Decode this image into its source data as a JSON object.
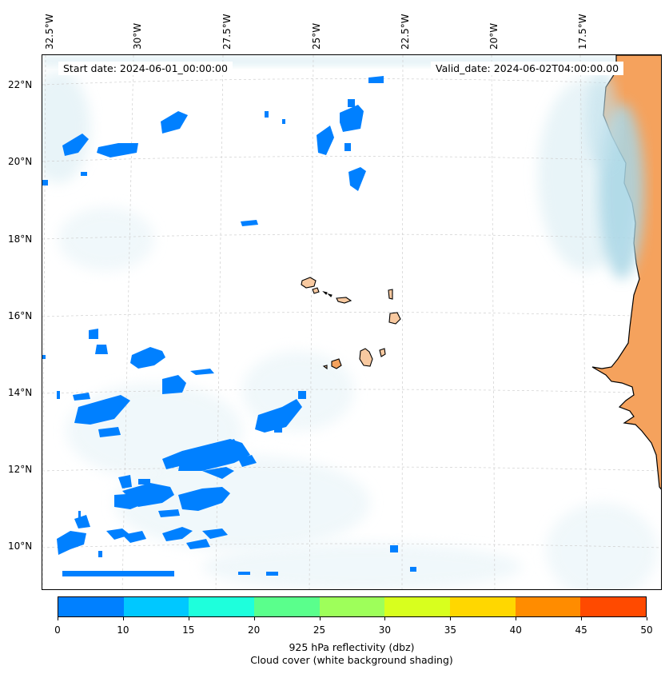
{
  "header": {
    "start_date": "Start date: 2024-06-01_00:00:00",
    "valid_date": "Valid_date: 2024-06-02T04:00:00.00"
  },
  "axes": {
    "lon_labels": [
      "32.5°W",
      "30°W",
      "27.5°W",
      "25°W",
      "22.5°W",
      "20°W",
      "17.5°W"
    ],
    "lat_labels": [
      "22°N",
      "20°N",
      "18°N",
      "16°N",
      "14°N",
      "12°N",
      "10°N"
    ]
  },
  "colorbar": {
    "ticks": [
      "0",
      "10",
      "15",
      "20",
      "25",
      "30",
      "35",
      "40",
      "45",
      "50"
    ],
    "colors": [
      "#0080ff",
      "#00c8ff",
      "#1effdc",
      "#5aff8c",
      "#9eff5a",
      "#d8ff1e",
      "#ffd700",
      "#ff8c00",
      "#ff4a00"
    ],
    "label_line1": "925 hPa reflectivity (dbz)",
    "label_line2": "Cloud cover (white background shading)"
  },
  "map_colors": {
    "land": "#f5a25d",
    "cloud_light": "#d6ebf2",
    "cloud_mid": "#a9d6e5",
    "echo_blue": "#0080ff",
    "island_fill": "#f8c9a0"
  }
}
